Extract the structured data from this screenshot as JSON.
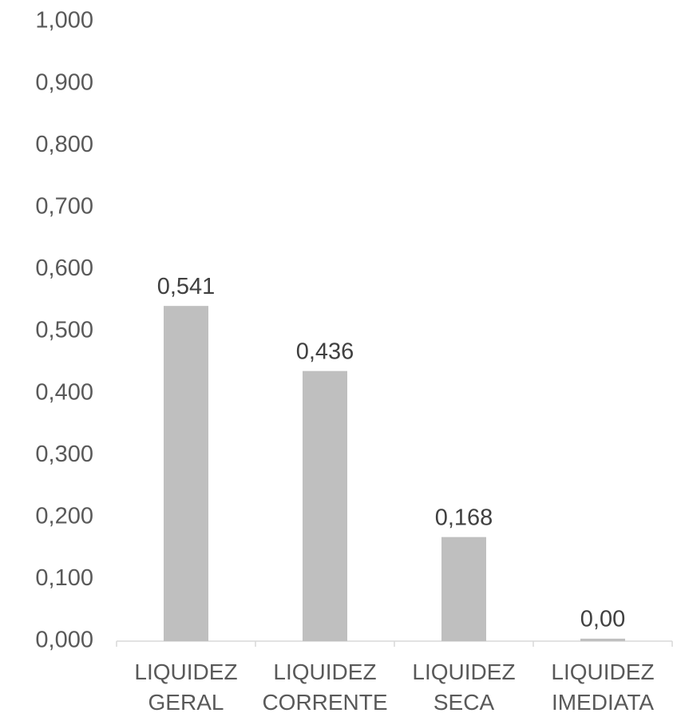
{
  "chart_data": {
    "type": "bar",
    "categories": [
      "LIQUIDEZ GERAL",
      "LIQUIDEZ CORRENTE",
      "LIQUIDEZ SECA",
      "LIQUIDEZ IMEDIATA"
    ],
    "values": [
      0.541,
      0.436,
      0.168,
      0.004
    ],
    "value_labels": [
      "0,541",
      "0,436",
      "0,168",
      "0,00"
    ],
    "color": "#bfbfbf",
    "ylim": [
      0,
      1
    ],
    "yticks": [
      {
        "value": 0,
        "label": "0,000"
      },
      {
        "value": 0.1,
        "label": "0,100"
      },
      {
        "value": 0.2,
        "label": "0,200"
      },
      {
        "value": 0.3,
        "label": "0,300"
      },
      {
        "value": 0.4,
        "label": "0,400"
      },
      {
        "value": 0.5,
        "label": "0,500"
      },
      {
        "value": 0.6,
        "label": "0,600"
      },
      {
        "value": 0.7,
        "label": "0,700"
      },
      {
        "value": 0.8,
        "label": "0,800"
      },
      {
        "value": 0.9,
        "label": "0,900"
      },
      {
        "value": 1,
        "label": "1,000"
      }
    ],
    "grid": false
  }
}
